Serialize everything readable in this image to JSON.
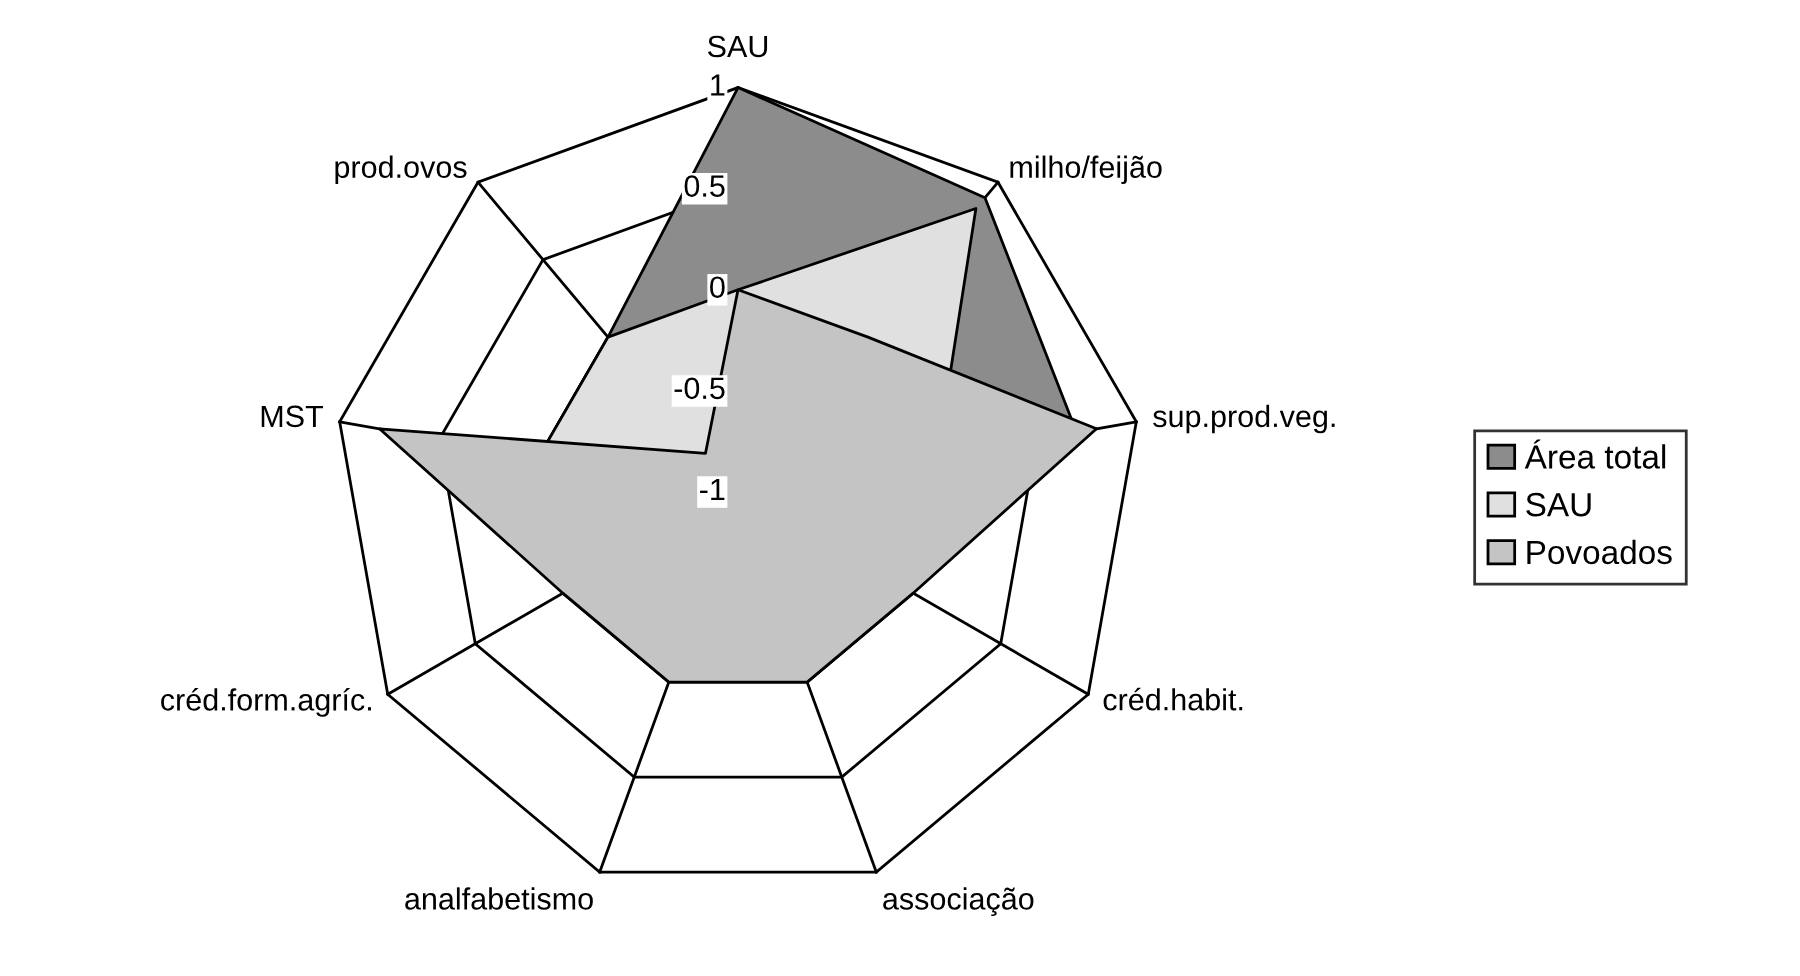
{
  "chart_data": {
    "type": "radar",
    "categories": [
      "SAU",
      "milho/feijão",
      "sup.prod.veg.",
      "créd.habit.",
      "associação",
      "analfabetismo",
      "créd.form.agríc.",
      "MST",
      "prod.ovos"
    ],
    "series": [
      {
        "name": "Área total",
        "color": "#8c8c8c",
        "values": [
          1,
          0.9,
          0.7,
          -1,
          -1,
          -1,
          -1,
          0,
          0
        ]
      },
      {
        "name": "SAU",
        "color": "#e0e0e0",
        "values": [
          0,
          0.83,
          0,
          -1,
          -1,
          -1,
          -1,
          0,
          0
        ]
      },
      {
        "name": "Povoados",
        "color": "#c4c4c4",
        "values": [
          0,
          0,
          0.8,
          0,
          0,
          0,
          0,
          0.8,
          -0.75
        ]
      }
    ],
    "ylim": [
      -1,
      1
    ],
    "yticks": [
      -1,
      -0.5,
      0,
      0.5,
      1
    ],
    "grid": true,
    "legend": "right"
  }
}
